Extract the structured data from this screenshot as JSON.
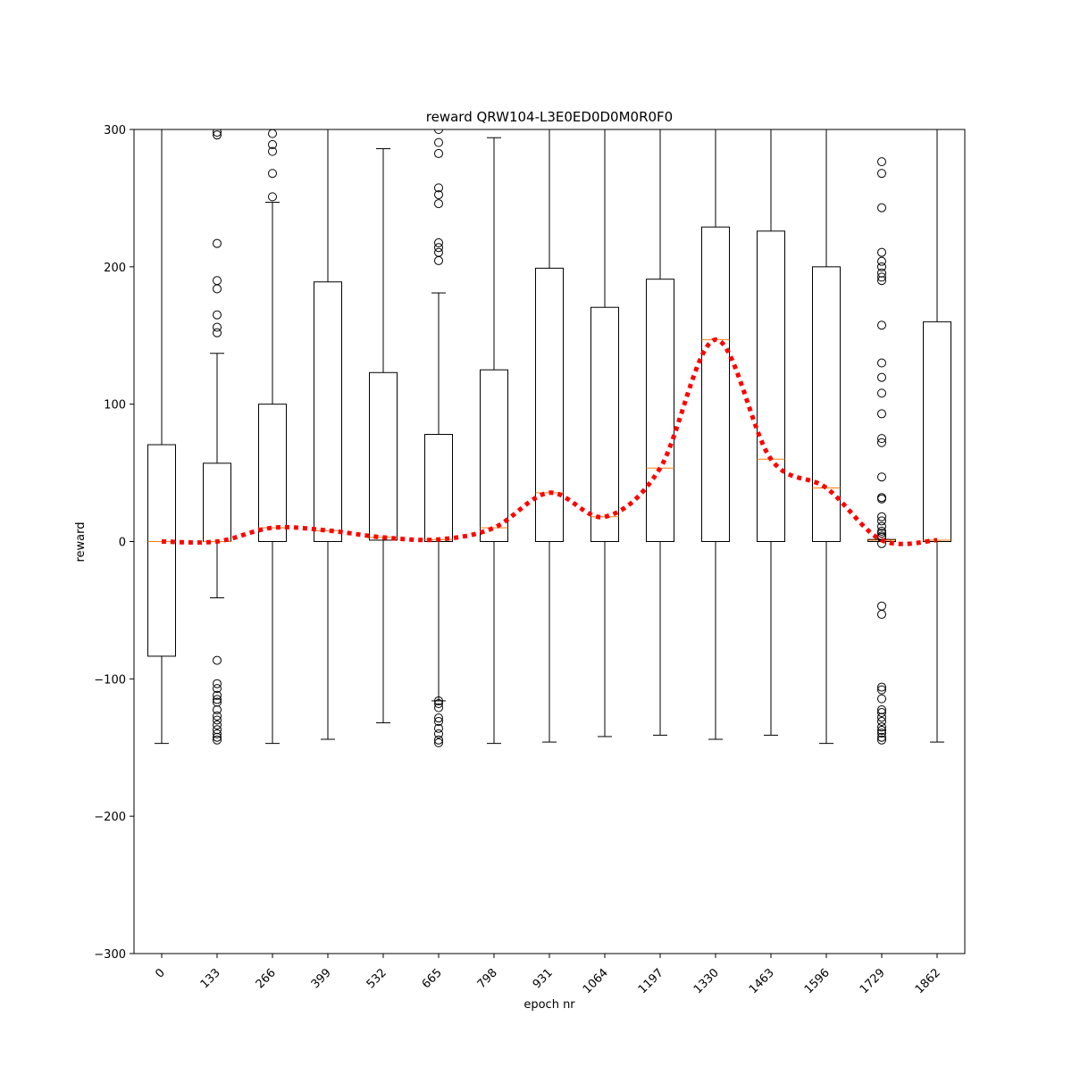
{
  "chart_data": {
    "type": "box",
    "title": "reward QRW104-L3E0ED0D0M0R0F0",
    "x_label": "epoch nr",
    "y_label": "reward",
    "categories": [
      "0",
      "133",
      "266",
      "399",
      "532",
      "665",
      "798",
      "931",
      "1064",
      "1197",
      "1330",
      "1463",
      "1596",
      "1729",
      "1862"
    ],
    "boxes": [
      {
        "whislo": -147,
        "q1": -83.5,
        "median": 0,
        "q3": 70.5,
        "whishi": 300,
        "fliers": []
      },
      {
        "whislo": -41,
        "q1": 0,
        "median": 0,
        "q3": 57,
        "whishi": 137,
        "fliers": [
          298,
          296,
          217,
          190,
          184,
          165,
          156,
          152,
          -86.5,
          -103.5,
          -107,
          -112,
          -115,
          -117,
          -122.5,
          -127,
          -130,
          -133.5,
          -137,
          -140,
          -142.5,
          -144.5
        ]
      },
      {
        "whislo": -147,
        "q1": 0,
        "median": 10,
        "q3": 100,
        "whishi": 247,
        "fliers": [
          297,
          289,
          284,
          268,
          251
        ]
      },
      {
        "whislo": -144,
        "q1": 0,
        "median": 8,
        "q3": 189,
        "whishi": 330,
        "fliers": []
      },
      {
        "whislo": -132,
        "q1": 1,
        "median": 3,
        "q3": 123,
        "whishi": 286,
        "fliers": []
      },
      {
        "whislo": -116,
        "q1": 0,
        "median": 1.5,
        "q3": 78,
        "whishi": 181,
        "fliers": [
          300,
          290.5,
          282.5,
          257.5,
          252.5,
          246,
          217.5,
          214,
          210.5,
          204.5,
          -116,
          -118,
          -121,
          -128.5,
          -131,
          -136,
          -140,
          -144.5,
          -146.5
        ]
      },
      {
        "whislo": -147,
        "q1": 0,
        "median": 10,
        "q3": 125,
        "whishi": 294,
        "fliers": []
      },
      {
        "whislo": -146,
        "q1": 0,
        "median": 35.5,
        "q3": 199,
        "whishi": 330,
        "fliers": []
      },
      {
        "whislo": -142,
        "q1": 0,
        "median": 18,
        "q3": 170.5,
        "whishi": 330,
        "fliers": []
      },
      {
        "whislo": -141,
        "q1": 0,
        "median": 53.5,
        "q3": 191,
        "whishi": 330,
        "fliers": []
      },
      {
        "whislo": -144,
        "q1": 0,
        "median": 147,
        "q3": 229,
        "whishi": 330,
        "fliers": []
      },
      {
        "whislo": -141,
        "q1": 0,
        "median": 60,
        "q3": 226,
        "whishi": 330,
        "fliers": []
      },
      {
        "whislo": -147,
        "q1": 0,
        "median": 39,
        "q3": 200,
        "whishi": 330,
        "fliers": []
      },
      {
        "whislo": 0,
        "q1": 0,
        "median": 1,
        "q3": 1.5,
        "whishi": 1.5,
        "fliers": [
          276.5,
          268,
          243,
          210.5,
          204,
          200,
          195.5,
          192.5,
          190,
          157.5,
          130,
          119.5,
          108,
          93,
          75,
          72,
          47,
          32,
          31,
          18,
          15,
          11,
          7.5,
          6,
          4,
          3,
          -1.5,
          -47,
          -53,
          -106,
          -108,
          -114.5,
          -122.5,
          -124.5,
          -128,
          -131,
          -135,
          -137.5,
          -139.5,
          -142.5,
          -144.5
        ]
      },
      {
        "whislo": -146,
        "q1": 0,
        "median": 1,
        "q3": 160,
        "whishi": 330,
        "fliers": []
      }
    ],
    "ylim": [
      -300,
      300
    ],
    "yticks": [
      {
        "value": -300,
        "label": "−300"
      },
      {
        "value": -200,
        "label": "−200"
      },
      {
        "value": -100,
        "label": "−100"
      },
      0,
      100,
      200,
      300
    ],
    "box_color": "#000000",
    "median_color": "#ff7f0e",
    "trend_color": "#ff0000"
  }
}
